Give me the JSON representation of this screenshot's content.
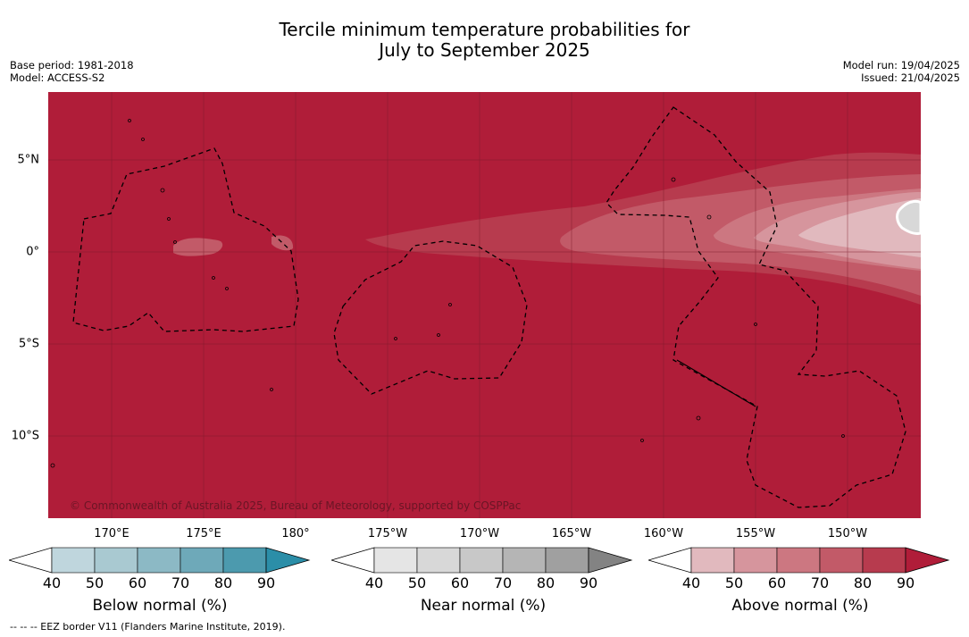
{
  "title": {
    "line1": "Tercile minimum temperature probabilities for",
    "line2": "July to September 2025"
  },
  "meta": {
    "base_period": "Base period: 1981-2018",
    "model": "Model: ACCESS-S2",
    "model_run": "Model run: 19/04/2025",
    "issued": "Issued: 21/04/2025"
  },
  "map": {
    "background_color": "#b01d39",
    "copyright": "© Commonwealth of Australia 2025, Bureau of Meteorology, supported by COSPPac",
    "lon_labels": [
      "170°E",
      "175°E",
      "180°",
      "175°W",
      "170°W",
      "165°W",
      "160°W",
      "155°W",
      "150°W"
    ],
    "lat_labels": [
      "5°N",
      "0°",
      "5°S",
      "10°S"
    ]
  },
  "legend": {
    "below": {
      "title": "Below normal (%)",
      "ticks": [
        "40",
        "50",
        "60",
        "70",
        "80",
        "90"
      ],
      "colors": [
        "#ffffff",
        "#bfd6dd",
        "#a9c9d1",
        "#8cb9c5",
        "#6ea9b9",
        "#4c9aae",
        "#2b8ea8"
      ]
    },
    "near": {
      "title": "Near normal (%)",
      "ticks": [
        "40",
        "50",
        "60",
        "70",
        "80",
        "90"
      ],
      "colors": [
        "#ffffff",
        "#e5e5e5",
        "#d8d8d8",
        "#c8c8c8",
        "#b5b5b5",
        "#a0a0a0",
        "#838383"
      ]
    },
    "above": {
      "title": "Above normal (%)",
      "ticks": [
        "40",
        "50",
        "60",
        "70",
        "80",
        "90"
      ],
      "colors": [
        "#ffffff",
        "#e1b9be",
        "#d6959d",
        "#cc7781",
        "#c25a68",
        "#b73b4e",
        "#b01d39"
      ]
    }
  },
  "footnote": "--  --  -- EEZ border V11 (Flanders Marine Institute, 2019)."
}
